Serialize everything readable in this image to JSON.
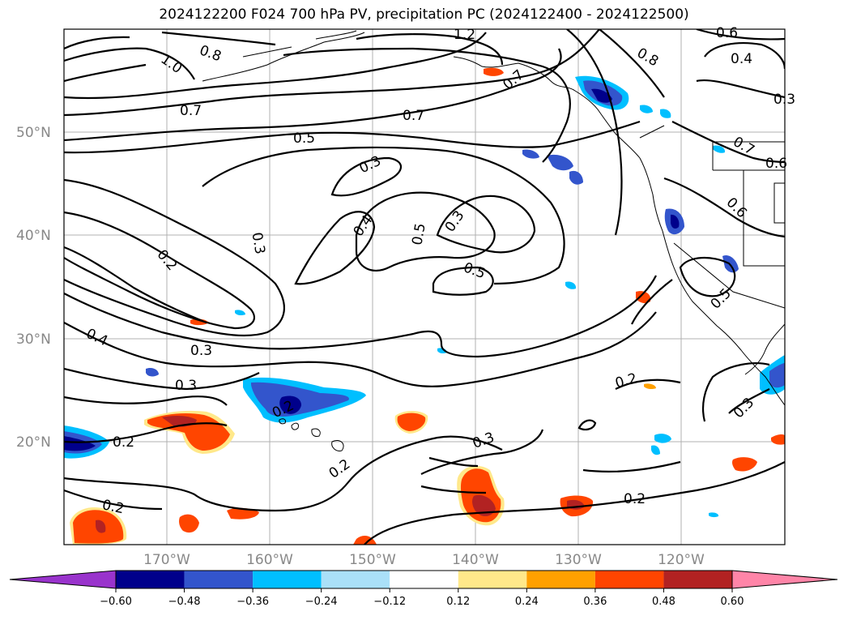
{
  "title": "2024122200 F024 700 hPa PV, precipitation PC (2024122400 - 2024122500)",
  "map": {
    "lat_labels": [
      "50°N",
      "40°N",
      "30°N",
      "20°N"
    ],
    "lon_labels": [
      "170°W",
      "160°W",
      "150°W",
      "140°W",
      "130°W",
      "120°W"
    ],
    "contour_labels": [
      "1.2",
      "1.0",
      "0.8",
      "0.8",
      "0.6",
      "0.4",
      "0.7",
      "0.7",
      "0.7",
      "0.7",
      "0.5",
      "0.6",
      "0.3",
      "0.3",
      "0.4",
      "0.5",
      "0.6",
      "0.3",
      "0.2",
      "0.5",
      "0.5",
      "0.4",
      "0.3",
      "0.3",
      "0.2",
      "0.3",
      "0.2",
      "0.3",
      "0.2",
      "0.2",
      "0.2",
      "0.3",
      "0.2"
    ]
  },
  "colorbar": {
    "tick_labels": [
      "−0.60",
      "−0.48",
      "−0.36",
      "−0.24",
      "−0.12",
      "0.12",
      "0.24",
      "0.36",
      "0.48",
      "0.60"
    ],
    "colors": [
      "#9933cc",
      "#00008b",
      "#3355cc",
      "#00bfff",
      "#aae0f8",
      "#ffffff",
      "#ffe88a",
      "#ffa000",
      "#ff4500",
      "#b22222",
      "#ff85a8"
    ]
  }
}
